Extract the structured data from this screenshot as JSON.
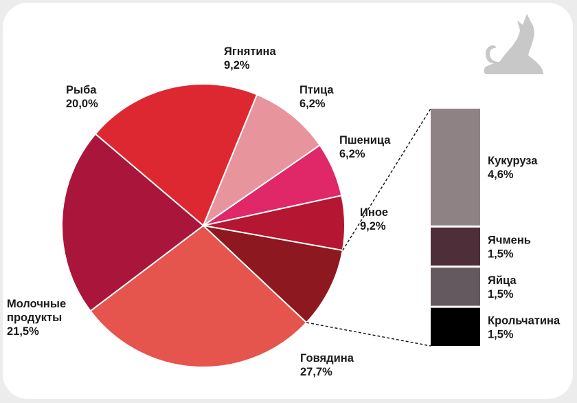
{
  "chart_data": [
    {
      "type": "pie",
      "slices": [
        {
          "label": "Говядина",
          "value": 27.7,
          "value_text": "27,7%",
          "color": "#e5544d"
        },
        {
          "label": "Молочные продукты",
          "value": 21.5,
          "value_text": "21,5%",
          "color": "#aa153b"
        },
        {
          "label": "Рыба",
          "value": 20.0,
          "value_text": "20,0%",
          "color": "#de2831"
        },
        {
          "label": "Ягнятина",
          "value": 9.2,
          "value_text": "9,2%",
          "color": "#e8949d"
        },
        {
          "label": "Птица",
          "value": 6.2,
          "value_text": "6,2%",
          "color": "#e02767"
        },
        {
          "label": "Пшеница",
          "value": 6.2,
          "value_text": "6,2%",
          "color": "#b51631"
        },
        {
          "label": "Иное",
          "value": 9.2,
          "value_text": "9,2%",
          "color": "#8e1820"
        }
      ],
      "label_lines": {
        "Молочные продукты": [
          "Молочные",
          "продукты"
        ]
      }
    },
    {
      "type": "bar",
      "stacked": true,
      "breakdown_of": "Иное",
      "segments": [
        {
          "label": "Кукуруза",
          "value": 4.6,
          "value_text": "4,6%",
          "color": "#8e8285"
        },
        {
          "label": "Ячмень",
          "value": 1.5,
          "value_text": "1,5%",
          "color": "#4e2e39"
        },
        {
          "label": "Яйца",
          "value": 1.5,
          "value_text": "1,5%",
          "color": "#655960"
        },
        {
          "label": "Крольчатина",
          "value": 1.5,
          "value_text": "1,5%",
          "color": "#000000"
        }
      ]
    }
  ],
  "icons": {
    "corner": "cat-silhouette-icon"
  },
  "colors": {
    "slice_border": "#ffffff",
    "connector": "#1a1a1a",
    "cat": "#c8c8c8"
  }
}
